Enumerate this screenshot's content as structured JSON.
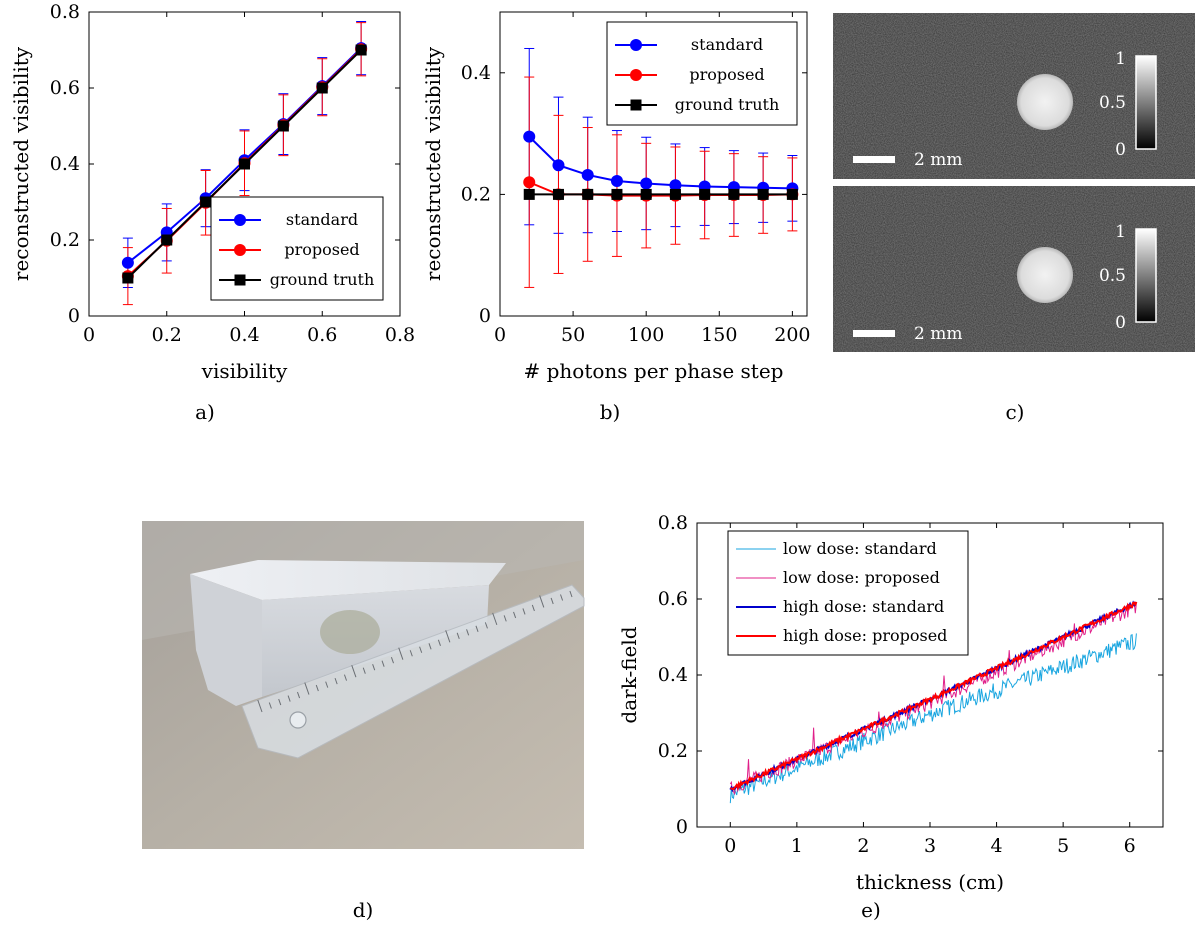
{
  "captions": {
    "a": "a)",
    "b": "b)",
    "c": "c)",
    "d": "d)",
    "e": "e)"
  },
  "colors": {
    "standard": "#0000ff",
    "proposed": "#ff0000",
    "ground_truth": "#000000",
    "low_standard": "#1aa6e0",
    "low_proposed": "#e0208a",
    "high_standard": "#0000cc",
    "high_proposed": "#ff0000"
  },
  "panel_c": {
    "scalebar_label": "2 mm",
    "colorbar_ticks": [
      "1",
      "0.5",
      "0"
    ]
  },
  "chart_data": [
    {
      "id": "a",
      "type": "line",
      "xlabel": "visibility",
      "ylabel": "reconstructed visibility",
      "xlim": [
        0,
        0.8
      ],
      "ylim": [
        0,
        0.8
      ],
      "xticks": [
        "0",
        "0.2",
        "0.4",
        "0.6",
        "0.8"
      ],
      "yticks": [
        "0",
        "0.2",
        "0.4",
        "0.6",
        "0.8"
      ],
      "x": [
        0.1,
        0.2,
        0.3,
        0.4,
        0.5,
        0.6,
        0.7
      ],
      "series": [
        {
          "name": "standard",
          "marker": "circle",
          "values": [
            0.14,
            0.22,
            0.31,
            0.41,
            0.505,
            0.605,
            0.705
          ],
          "err": [
            0.065,
            0.075,
            0.075,
            0.08,
            0.08,
            0.075,
            0.07
          ]
        },
        {
          "name": "proposed",
          "marker": "circle",
          "values": [
            0.105,
            0.198,
            0.298,
            0.402,
            0.502,
            0.602,
            0.702
          ],
          "err": [
            0.075,
            0.085,
            0.085,
            0.085,
            0.08,
            0.075,
            0.07
          ]
        },
        {
          "name": "ground truth",
          "marker": "square",
          "values": [
            0.1,
            0.2,
            0.3,
            0.4,
            0.5,
            0.6,
            0.7
          ],
          "err": []
        }
      ],
      "legend": "bottom-right"
    },
    {
      "id": "b",
      "type": "line",
      "xlabel": "# photons per phase step",
      "ylabel": "reconstructed visibility",
      "xlim": [
        0,
        210
      ],
      "ylim": [
        0,
        0.5
      ],
      "xticks": [
        "0",
        "50",
        "100",
        "150",
        "200"
      ],
      "yticks": [
        "0",
        "0.2",
        "0.4"
      ],
      "x": [
        20,
        40,
        60,
        80,
        100,
        120,
        140,
        160,
        180,
        200
      ],
      "series": [
        {
          "name": "standard",
          "marker": "circle",
          "values": [
            0.295,
            0.248,
            0.232,
            0.222,
            0.218,
            0.215,
            0.213,
            0.212,
            0.211,
            0.21
          ],
          "err": [
            0.145,
            0.112,
            0.095,
            0.083,
            0.076,
            0.068,
            0.064,
            0.06,
            0.057,
            0.054
          ]
        },
        {
          "name": "proposed",
          "marker": "circle",
          "values": [
            0.22,
            0.2,
            0.2,
            0.198,
            0.198,
            0.198,
            0.199,
            0.199,
            0.199,
            0.2
          ],
          "err": [
            0.173,
            0.13,
            0.11,
            0.1,
            0.086,
            0.08,
            0.072,
            0.068,
            0.063,
            0.06
          ]
        },
        {
          "name": "ground truth",
          "marker": "square",
          "values": [
            0.2,
            0.2,
            0.2,
            0.2,
            0.2,
            0.2,
            0.2,
            0.2,
            0.2,
            0.2
          ],
          "err": []
        }
      ],
      "legend": "top-right"
    },
    {
      "id": "e",
      "type": "line",
      "xlabel": "thickness (cm)",
      "ylabel": "dark-field",
      "xlim": [
        -0.5,
        6.5
      ],
      "ylim": [
        0,
        0.8
      ],
      "xticks": [
        "0",
        "1",
        "2",
        "3",
        "4",
        "5",
        "6"
      ],
      "yticks": [
        "0",
        "0.2",
        "0.4",
        "0.6",
        "0.8"
      ],
      "x_range": [
        0,
        6.1
      ],
      "series": [
        {
          "name": "low dose: standard",
          "start": 0.085,
          "mid": 0.3,
          "end": 0.49,
          "noise": 0.022
        },
        {
          "name": "low dose: proposed",
          "start": 0.1,
          "mid": 0.33,
          "end": 0.58,
          "noise": 0.018
        },
        {
          "name": "high dose: standard",
          "start": 0.1,
          "mid": 0.34,
          "end": 0.59,
          "noise": 0.006
        },
        {
          "name": "high dose: proposed",
          "start": 0.1,
          "mid": 0.34,
          "end": 0.59,
          "noise": 0.006
        }
      ],
      "legend": "top-left"
    }
  ]
}
